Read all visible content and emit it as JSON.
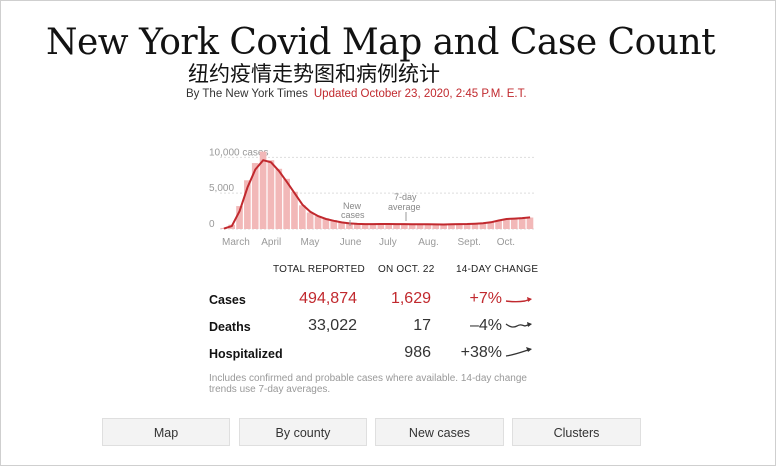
{
  "header": {
    "headline": "New York Covid Map and Case Count",
    "subheadline": "纽约疫情走势图和病例统计",
    "byline": "By The New York Times",
    "updated": "Updated October 23, 2020, 2:45 P.M. E.T."
  },
  "chart_data": {
    "type": "bar",
    "subtitle": "",
    "y_ticks": [
      "10,000 cases",
      "5,000",
      "0"
    ],
    "y_tick_values": [
      10000,
      5000,
      0
    ],
    "x_ticks": [
      "March",
      "April",
      "May",
      "June",
      "July",
      "Aug.",
      "Sept.",
      "Oct."
    ],
    "ylim": [
      0,
      12000
    ],
    "annotations": [
      "New cases",
      "7-day average"
    ],
    "colors": {
      "bars": "#f2b8b8",
      "average_line": "#c1292e",
      "grid": "#dddddd"
    },
    "series": [
      {
        "name": "New cases",
        "kind": "weekly_bars",
        "values": [
          150,
          600,
          3200,
          6800,
          9200,
          10800,
          9600,
          8400,
          7000,
          5200,
          3300,
          2300,
          1800,
          1500,
          1250,
          950,
          800,
          720,
          680,
          700,
          720,
          710,
          690,
          680,
          670,
          660,
          650,
          640,
          620,
          650,
          680,
          700,
          750,
          800,
          950,
          1200,
          1450,
          1500,
          1550,
          1600
        ]
      },
      {
        "name": "7-day average",
        "kind": "line",
        "values": [
          50,
          400,
          2500,
          5800,
          8300,
          9600,
          9300,
          8100,
          6600,
          5000,
          3400,
          2400,
          1800,
          1400,
          1150,
          920,
          780,
          710,
          680,
          690,
          700,
          700,
          690,
          680,
          670,
          660,
          650,
          640,
          630,
          650,
          680,
          700,
          740,
          800,
          930,
          1180,
          1400,
          1450,
          1520,
          1620
        ]
      }
    ]
  },
  "stats": {
    "headers": {
      "total": "TOTAL REPORTED",
      "day": "ON OCT. 22",
      "change": "14-DAY CHANGE"
    },
    "rows": [
      {
        "label": "Cases",
        "total": "494,874",
        "day": "1,629",
        "change": "+7%",
        "trend": "up"
      },
      {
        "label": "Deaths",
        "total": "33,022",
        "day": "17",
        "change": "–4%",
        "trend": "flat"
      },
      {
        "label": "Hospitalized",
        "total": "",
        "day": "986",
        "change": "+38%",
        "trend": "up"
      }
    ],
    "note": "Includes confirmed and probable cases where available. 14-day change trends use 7-day averages."
  },
  "nav": {
    "buttons": [
      "Map",
      "By county",
      "New cases",
      "Clusters"
    ]
  }
}
